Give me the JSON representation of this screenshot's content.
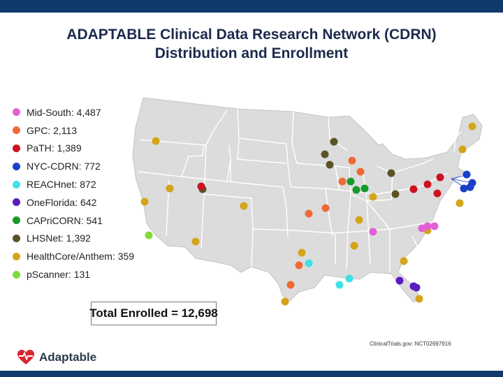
{
  "title": {
    "line1": "ADAPTABLE Clinical Data Research Network (CDRN)",
    "line2": "Distribution and Enrollment"
  },
  "legend": [
    {
      "label": "Mid-South: 4,487",
      "color": "#e25fd8",
      "network": "Mid-South",
      "enrollment": 4487
    },
    {
      "label": "GPC: 2,113",
      "color": "#f06a35",
      "network": "GPC",
      "enrollment": 2113
    },
    {
      "label": "PaTH: 1,389",
      "color": "#cc1420",
      "network": "PaTH",
      "enrollment": 1389
    },
    {
      "label": "NYC-CDRN: 772",
      "color": "#1a3fc9",
      "network": "NYC-CDRN",
      "enrollment": 772
    },
    {
      "label": "REACHnet: 872",
      "color": "#3fe0e6",
      "network": "REACHnet",
      "enrollment": 872
    },
    {
      "label": "OneFlorida: 642",
      "color": "#5a1bbf",
      "network": "OneFlorida",
      "enrollment": 642
    },
    {
      "label": "CAPriCORN: 541",
      "color": "#159a2a",
      "network": "CAPriCORN",
      "enrollment": 541
    },
    {
      "label": "LHSNet: 1,392",
      "color": "#5c5226",
      "network": "LHSNet",
      "enrollment": 1392
    },
    {
      "label": "HealthCore/Anthem: 359",
      "color": "#d4a419",
      "network": "HealthCore/Anthem",
      "enrollment": 359
    },
    {
      "label": "pScanner: 131",
      "color": "#7edb3a",
      "network": "pScanner",
      "enrollment": 131
    }
  ],
  "total": {
    "label": "Total Enrolled = 12,698",
    "value": 12698
  },
  "source": "ClinicalTrials.gov: NCT02697916",
  "logo": {
    "text": "Adaptable",
    "icon": "heart-icon"
  },
  "colors": {
    "brand_bar": "#0f3a6b",
    "title_text": "#1c2a4d",
    "map_fill": "#dcdcdc",
    "map_lines": "#ffffff"
  }
}
